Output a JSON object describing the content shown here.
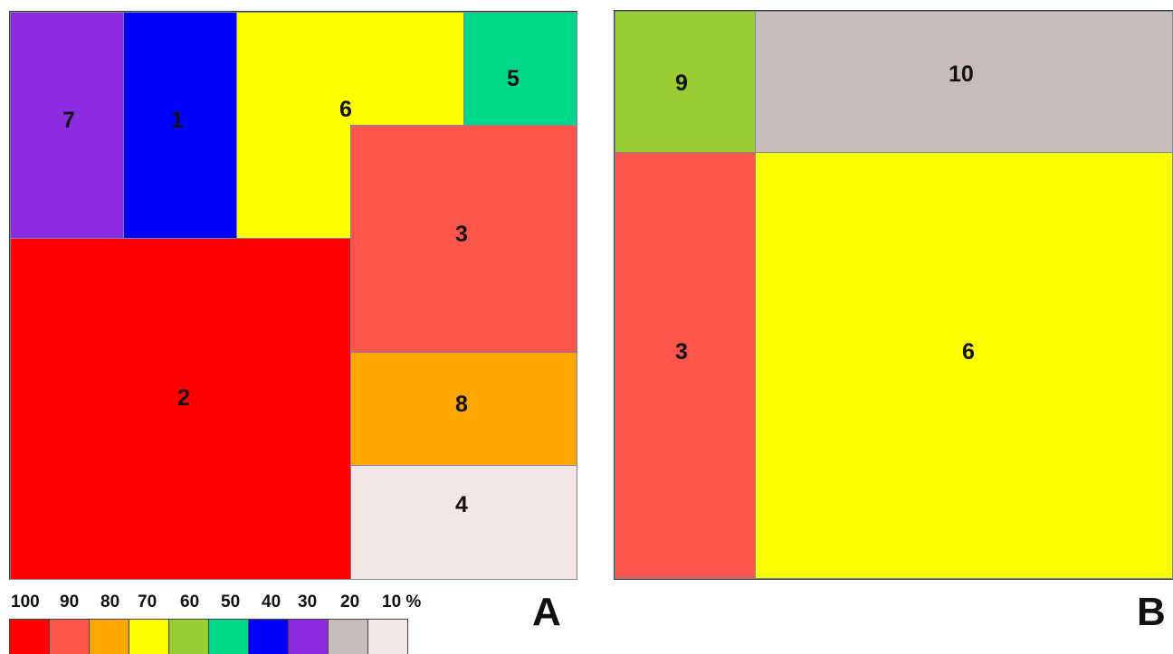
{
  "panel_a": {
    "letter": "A",
    "cells": [
      {
        "id": "7",
        "label": "7",
        "color": "#8a2be2",
        "percent": 30
      },
      {
        "id": "1",
        "label": "1",
        "color": "#0000ff",
        "percent": 40
      },
      {
        "id": "6",
        "label": "6",
        "color": "#ffff00",
        "percent": 70
      },
      {
        "id": "5",
        "label": "5",
        "color": "#00d68a",
        "percent": 50
      },
      {
        "id": "3",
        "label": "3",
        "color": "#ff554a",
        "percent": 90
      },
      {
        "id": "2",
        "label": "2",
        "color": "#ff0000",
        "percent": 100
      },
      {
        "id": "8",
        "label": "8",
        "color": "#ffa500",
        "percent": 80
      },
      {
        "id": "4",
        "label": "4",
        "color": "#f5e6e6",
        "percent": 10
      }
    ]
  },
  "panel_b": {
    "letter": "B",
    "cells": [
      {
        "id": "9",
        "label": "9",
        "color": "#9acd32",
        "percent": 60
      },
      {
        "id": "10",
        "label": "10",
        "color": "#c8bcbb",
        "percent": 20
      },
      {
        "id": "3",
        "label": "3",
        "color": "#ff554a",
        "percent": 90
      },
      {
        "id": "6",
        "label": "6",
        "color": "#ffff00",
        "percent": 70
      }
    ]
  },
  "legend": {
    "items": [
      {
        "label": "100",
        "color": "#ff0000"
      },
      {
        "label": "90",
        "color": "#ff554a"
      },
      {
        "label": "80",
        "color": "#ffa500"
      },
      {
        "label": "70",
        "color": "#ffff00"
      },
      {
        "label": "60",
        "color": "#9acd32"
      },
      {
        "label": "50",
        "color": "#00d68a"
      },
      {
        "label": "40",
        "color": "#0000ff"
      },
      {
        "label": "30",
        "color": "#8a2be2"
      },
      {
        "label": "20",
        "color": "#c8bcbb"
      },
      {
        "label": "10 %",
        "color": "#f5e6e6"
      }
    ]
  }
}
